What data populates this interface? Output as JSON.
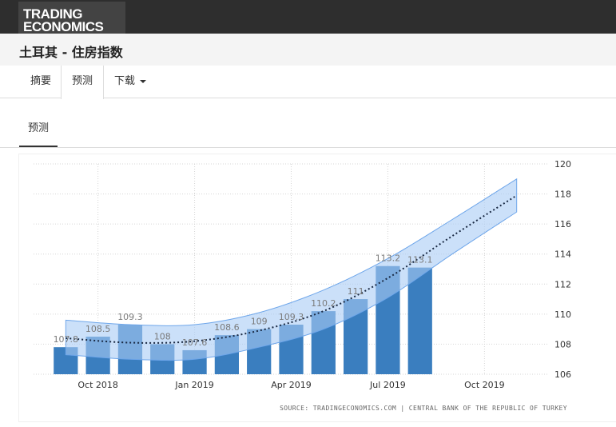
{
  "header": {
    "logo_line1": "TRADING",
    "logo_line2": "ECONOMICS"
  },
  "page": {
    "title": "土耳其 - 住房指数"
  },
  "nav": {
    "tabs": [
      {
        "label": "摘要"
      },
      {
        "label": "预测"
      },
      {
        "label": "下载"
      }
    ]
  },
  "subnav": {
    "tab_label": "预测"
  },
  "source_text": "SOURCE: TRADINGECONOMICS.COM  |  CENTRAL BANK OF THE REPUBLIC OF TURKEY",
  "colors": {
    "bar": "#3a7ebf",
    "band": "#a9cbf5",
    "band_edge": "#6ea6ea",
    "trend": "#1a2a44"
  },
  "chart_data": {
    "type": "bar",
    "bar_dates": [
      "2018-09",
      "2018-10",
      "2018-11",
      "2018-12",
      "2019-01",
      "2019-02",
      "2019-03",
      "2019-04",
      "2019-05",
      "2019-06",
      "2019-07",
      "2019-08"
    ],
    "values": [
      107.8,
      108.5,
      109.3,
      108,
      107.6,
      108.6,
      109,
      109.3,
      110.2,
      111,
      113.2,
      113.1
    ],
    "data_labels": [
      "107.8",
      "108.5",
      "109.3",
      "108",
      "107.6",
      "108.6",
      "109",
      "109.3",
      "110.2",
      "111",
      "113.2",
      "113.1"
    ],
    "forecast": {
      "dates": [
        "2018-09",
        "2018-11",
        "2019-01",
        "2019-03",
        "2019-05",
        "2019-07",
        "2019-09",
        "2019-11"
      ],
      "trend": [
        108.4,
        108.1,
        108.2,
        108.9,
        110.2,
        112.4,
        115.2,
        117.9
      ],
      "band_upper": [
        109.6,
        109.3,
        109.3,
        110.1,
        111.6,
        113.7,
        116.3,
        119.0
      ],
      "band_lower": [
        107.3,
        107.0,
        107.0,
        107.8,
        109.0,
        111.1,
        114.0,
        116.8
      ]
    },
    "x_ticks": [
      {
        "date": "2018-10",
        "label": "Oct 2018"
      },
      {
        "date": "2019-01",
        "label": "Jan 2019"
      },
      {
        "date": "2019-04",
        "label": "Apr 2019"
      },
      {
        "date": "2019-07",
        "label": "Jul 2019"
      },
      {
        "date": "2019-10",
        "label": "Oct 2019"
      }
    ],
    "x_range": [
      "2018-08",
      "2019-12"
    ],
    "y_ticks": [
      106,
      108,
      110,
      112,
      114,
      116,
      118,
      120
    ],
    "ylim": [
      106,
      120
    ],
    "y_axis_side": "right",
    "grid": true,
    "title": "",
    "xlabel": "",
    "ylabel": ""
  }
}
